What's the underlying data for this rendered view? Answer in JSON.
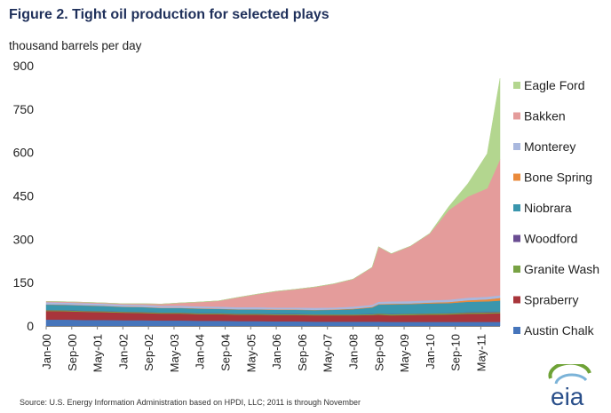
{
  "figure": {
    "title": "Figure 2.  Tight oil production for selected plays",
    "units": "thousand barrels per day",
    "source": "Source:  U.S. Energy Information Administration based on HPDI, LLC; 2011 is through November",
    "logo_text": "eia"
  },
  "colors": {
    "Eagle Ford": "#b3d68f",
    "Bakken": "#e49c9b",
    "Monterey": "#a9b8de",
    "Bone Spring": "#ea8a3b",
    "Niobrara": "#3a96ad",
    "Woodford": "#6a4d92",
    "Granite Wash": "#78a244",
    "Spraberry": "#a8353b",
    "Austin Chalk": "#4675bb"
  },
  "chart_data": {
    "type": "area",
    "stacked": true,
    "title": "Figure 2.  Tight oil production for selected plays",
    "ylabel": "thousand barrels per day",
    "ylim": [
      0,
      900
    ],
    "yticks": [
      0,
      150,
      300,
      450,
      600,
      750,
      900
    ],
    "xticks": [
      "Jan-00",
      "Sep-00",
      "May-01",
      "Jan-02",
      "Sep-02",
      "May-03",
      "Jan-04",
      "Sep-04",
      "May-05",
      "Jan-06",
      "Sep-06",
      "May-07",
      "Jan-08",
      "Sep-08",
      "May-09",
      "Jan-10",
      "Sep-10",
      "May-11"
    ],
    "x": [
      "Jan-00",
      "Jul-00",
      "Jan-01",
      "Jul-01",
      "Jan-02",
      "Jul-02",
      "Jan-03",
      "Jul-03",
      "Jan-04",
      "Jul-04",
      "Jan-05",
      "Jul-05",
      "Jan-06",
      "Jul-06",
      "Jan-07",
      "Jul-07",
      "Jan-08",
      "Jul-08",
      "Sep-08",
      "Jan-09",
      "Jul-09",
      "Jan-10",
      "Jul-10",
      "Jan-11",
      "Jul-11",
      "Nov-11"
    ],
    "legend_position": "right",
    "series": [
      {
        "name": "Austin Chalk",
        "values": [
          22,
          22,
          21,
          21,
          20,
          20,
          19,
          19,
          18,
          18,
          17,
          17,
          16,
          16,
          15,
          15,
          15,
          15,
          15,
          14,
          14,
          14,
          14,
          14,
          14,
          14
        ]
      },
      {
        "name": "Spraberry",
        "values": [
          30,
          29,
          28,
          27,
          26,
          25,
          24,
          24,
          23,
          23,
          22,
          22,
          22,
          22,
          22,
          22,
          22,
          23,
          24,
          23,
          24,
          25,
          26,
          28,
          29,
          30
        ]
      },
      {
        "name": "Granite Wash",
        "values": [
          3,
          3,
          3,
          3,
          3,
          3,
          3,
          3,
          3,
          3,
          3,
          3,
          3,
          3,
          3,
          3,
          3,
          3,
          4,
          4,
          4,
          4,
          4,
          4,
          4,
          4
        ]
      },
      {
        "name": "Woodford",
        "values": [
          1,
          1,
          1,
          1,
          1,
          1,
          1,
          1,
          1,
          1,
          1,
          1,
          1,
          1,
          1,
          1,
          1,
          1,
          1,
          1,
          1,
          1,
          1,
          2,
          2,
          2
        ]
      },
      {
        "name": "Niobrara",
        "values": [
          18,
          18,
          18,
          17,
          16,
          16,
          15,
          15,
          15,
          14,
          14,
          14,
          14,
          14,
          14,
          15,
          17,
          22,
          30,
          33,
          33,
          34,
          34,
          36,
          36,
          38
        ]
      },
      {
        "name": "Bone Spring",
        "values": [
          1,
          1,
          1,
          1,
          1,
          1,
          1,
          1,
          1,
          1,
          1,
          1,
          1,
          1,
          1,
          1,
          2,
          2,
          2,
          2,
          2,
          3,
          4,
          5,
          7,
          9
        ]
      },
      {
        "name": "Monterey",
        "values": [
          7,
          7,
          7,
          7,
          7,
          7,
          7,
          7,
          7,
          7,
          7,
          7,
          7,
          7,
          7,
          7,
          7,
          7,
          8,
          8,
          8,
          8,
          8,
          9,
          9,
          9
        ]
      },
      {
        "name": "Bakken",
        "values": [
          3,
          3,
          3,
          3,
          3,
          4,
          6,
          10,
          15,
          20,
          34,
          45,
          56,
          63,
          72,
          82,
          95,
          130,
          190,
          165,
          190,
          230,
          310,
          350,
          375,
          470
        ]
      },
      {
        "name": "Eagle Ford",
        "values": [
          0,
          0,
          0,
          0,
          0,
          0,
          0,
          0,
          0,
          0,
          0,
          0,
          0,
          0,
          0,
          0,
          0,
          0,
          0,
          0,
          0,
          1,
          12,
          45,
          120,
          280
        ]
      }
    ]
  }
}
